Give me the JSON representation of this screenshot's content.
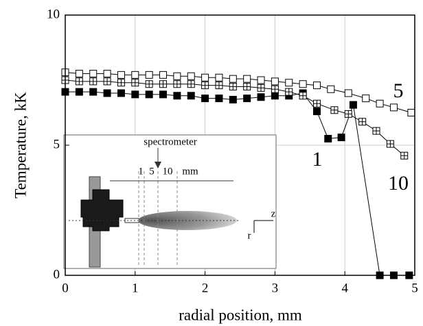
{
  "chart_data": {
    "type": "line",
    "xlabel": "radial position, mm",
    "ylabel": "Temperature, kK",
    "xlim": [
      0,
      5
    ],
    "xticks": [
      0,
      1,
      2,
      3,
      4,
      5
    ],
    "ylim": [
      0,
      10
    ],
    "yticks": [
      0,
      5,
      10
    ],
    "grid": true,
    "series": [
      {
        "name": "1",
        "color": "#000000",
        "marker": "filled",
        "x": [
          0,
          0.2,
          0.4,
          0.6,
          0.8,
          1.0,
          1.2,
          1.4,
          1.6,
          1.8,
          2.0,
          2.2,
          2.4,
          2.6,
          2.8,
          3.0,
          3.2,
          3.4,
          3.6,
          3.76,
          3.95,
          4.12,
          4.5,
          4.7,
          4.92
        ],
        "values": [
          7.05,
          7.05,
          7.05,
          7.0,
          7.0,
          6.95,
          6.95,
          6.95,
          6.9,
          6.9,
          6.8,
          6.8,
          6.75,
          6.8,
          6.85,
          6.9,
          6.9,
          7.0,
          6.3,
          5.25,
          5.3,
          6.55,
          0,
          0,
          0
        ]
      },
      {
        "name": "5",
        "color": "#000000",
        "marker": "open",
        "x": [
          0,
          0.2,
          0.4,
          0.6,
          0.8,
          1.0,
          1.2,
          1.4,
          1.6,
          1.8,
          2.0,
          2.2,
          2.4,
          2.6,
          2.8,
          3.0,
          3.2,
          3.4,
          3.6,
          3.8,
          4.05,
          4.3,
          4.5,
          4.7,
          4.95
        ],
        "values": [
          7.8,
          7.75,
          7.75,
          7.75,
          7.7,
          7.7,
          7.7,
          7.7,
          7.65,
          7.65,
          7.6,
          7.6,
          7.55,
          7.55,
          7.5,
          7.45,
          7.4,
          7.35,
          7.3,
          7.15,
          7.0,
          6.8,
          6.6,
          6.45,
          6.25
        ]
      },
      {
        "name": "10",
        "color": "#000000",
        "marker": "crossed",
        "x": [
          0,
          0.2,
          0.4,
          0.6,
          0.8,
          1.0,
          1.2,
          1.4,
          1.6,
          1.8,
          2.0,
          2.2,
          2.4,
          2.6,
          2.8,
          3.0,
          3.2,
          3.4,
          3.6,
          3.85,
          4.05,
          4.25,
          4.45,
          4.65,
          4.85
        ],
        "values": [
          7.5,
          7.45,
          7.45,
          7.45,
          7.4,
          7.4,
          7.35,
          7.35,
          7.35,
          7.35,
          7.3,
          7.3,
          7.25,
          7.25,
          7.2,
          7.15,
          7.05,
          6.9,
          6.6,
          6.35,
          6.2,
          5.9,
          5.55,
          5.05,
          4.6
        ]
      }
    ],
    "inset": {
      "labels": [
        "spectrometer",
        "1",
        "5",
        "10",
        "mm",
        "z",
        "r"
      ]
    }
  }
}
